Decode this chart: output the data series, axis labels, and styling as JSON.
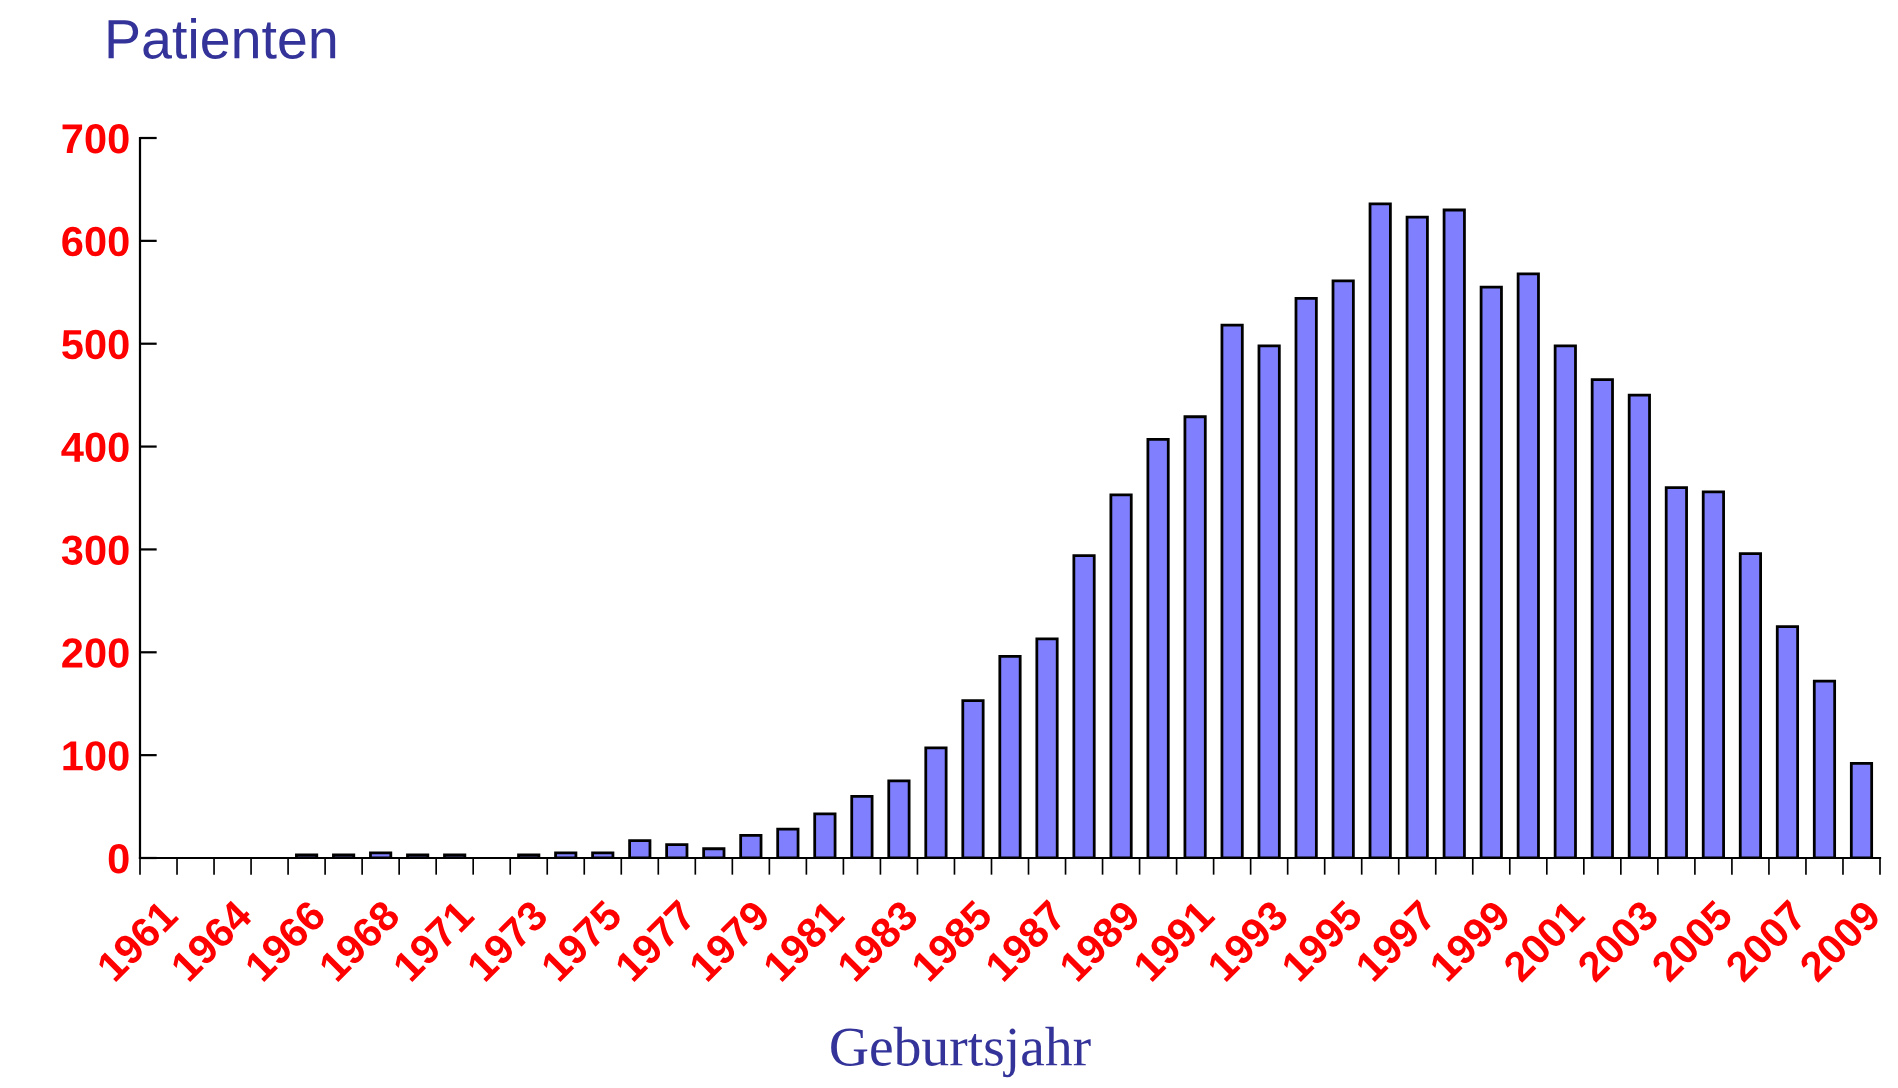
{
  "chart_data": {
    "type": "bar",
    "title": "Patienten",
    "xlabel": "Geburtsjahr",
    "categories": [
      "1961",
      null,
      "1964",
      null,
      "1966",
      null,
      "1968",
      null,
      "1971",
      null,
      "1973",
      null,
      "1975",
      null,
      "1977",
      null,
      "1979",
      null,
      "1981",
      null,
      "1983",
      null,
      "1985",
      null,
      "1987",
      null,
      "1989",
      null,
      "1991",
      null,
      "1993",
      null,
      "1995",
      null,
      "1997",
      null,
      "1999",
      null,
      "2001",
      null,
      "2003",
      null,
      "2005",
      null,
      "2007",
      null,
      "2009"
    ],
    "values": [
      0,
      0,
      0,
      0,
      3,
      3,
      5,
      3,
      3,
      0,
      3,
      5,
      5,
      17,
      13,
      9,
      22,
      28,
      43,
      60,
      75,
      107,
      153,
      196,
      213,
      294,
      353,
      407,
      429,
      518,
      498,
      544,
      561,
      636,
      623,
      630,
      555,
      568,
      498,
      465,
      450,
      360,
      356,
      296,
      225,
      172,
      92
    ],
    "color": "#8080ff",
    "ylim": [
      0,
      700
    ],
    "yticks": [
      0,
      100,
      200,
      300,
      400,
      500,
      600,
      700
    ],
    "grid": false,
    "legend": false
  }
}
